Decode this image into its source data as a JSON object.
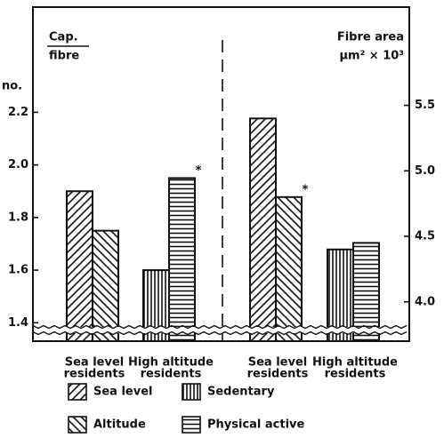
{
  "chart_data": {
    "type": "bar",
    "categories": [
      [
        "Sea level",
        "residents"
      ],
      [
        "High altitude",
        "residents"
      ],
      [
        "Sea level",
        "residents"
      ],
      [
        "High altitude",
        "residents"
      ]
    ],
    "category_axis": [
      "y",
      "y",
      "y2",
      "y2"
    ],
    "y_label": [
      "Cap.",
      "fibre"
    ],
    "y_unit": "no.",
    "y2_label": [
      "Fibre area",
      "μm² × 10³"
    ],
    "ylim": [
      1.33,
      2.6
    ],
    "yticks": [
      1.4,
      1.6,
      1.8,
      {
        "value": 2,
        "label": "2.0"
      },
      2.2
    ],
    "y2lim": [
      3.7,
      6.25
    ],
    "y2ticks": [
      {
        "value": 4,
        "label": "4.0"
      },
      4.5,
      {
        "value": 5,
        "label": "5.0"
      },
      5.5
    ],
    "series": [
      {
        "name": "Sea level",
        "color": "#111111",
        "pattern": "diagonal-up",
        "values": [
          1.9,
          null,
          5.4,
          null
        ]
      },
      {
        "name": "Altitude",
        "color": "#111111",
        "pattern": "diagonal-down",
        "values": [
          1.75,
          null,
          4.8,
          null
        ]
      },
      {
        "name": "Sedentary",
        "color": "#111111",
        "pattern": "vertical",
        "values": [
          null,
          1.6,
          null,
          4.4
        ]
      },
      {
        "name": "Physical active",
        "color": "#111111",
        "pattern": "horizontal",
        "values": [
          null,
          1.95,
          null,
          4.45
        ]
      }
    ],
    "annotations": [
      {
        "text": "*",
        "series": 3,
        "category": 1
      },
      {
        "text": "*",
        "series": 1,
        "category": 2
      }
    ]
  }
}
